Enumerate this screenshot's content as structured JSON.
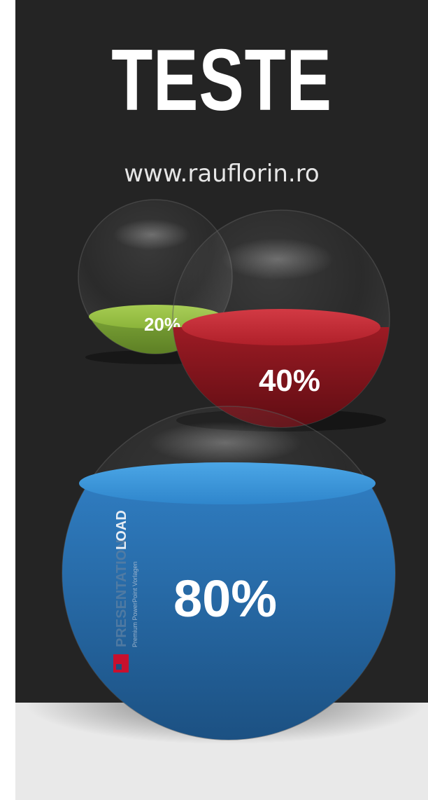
{
  "header": {
    "title": "TESTE",
    "url": "www.rauflorin.ro"
  },
  "spheres": [
    {
      "name": "green-sphere",
      "label": "20%",
      "fill_fraction": 0.2,
      "color": "#8bb43a"
    },
    {
      "name": "red-sphere",
      "label": "40%",
      "fill_fraction": 0.4,
      "color": "#b0202a"
    },
    {
      "name": "blue-sphere",
      "label": "80%",
      "fill_fraction": 0.8,
      "color": "#2a6fb0"
    }
  ],
  "watermark": {
    "brand_light": "PRESENTATION",
    "brand_bold": "LOAD",
    "tagline": "Premium PowerPoint Vorlagen",
    "accent_color": "#c8102e"
  },
  "colors": {
    "background_dark": "#242424",
    "floor": "#e9e9e9"
  }
}
